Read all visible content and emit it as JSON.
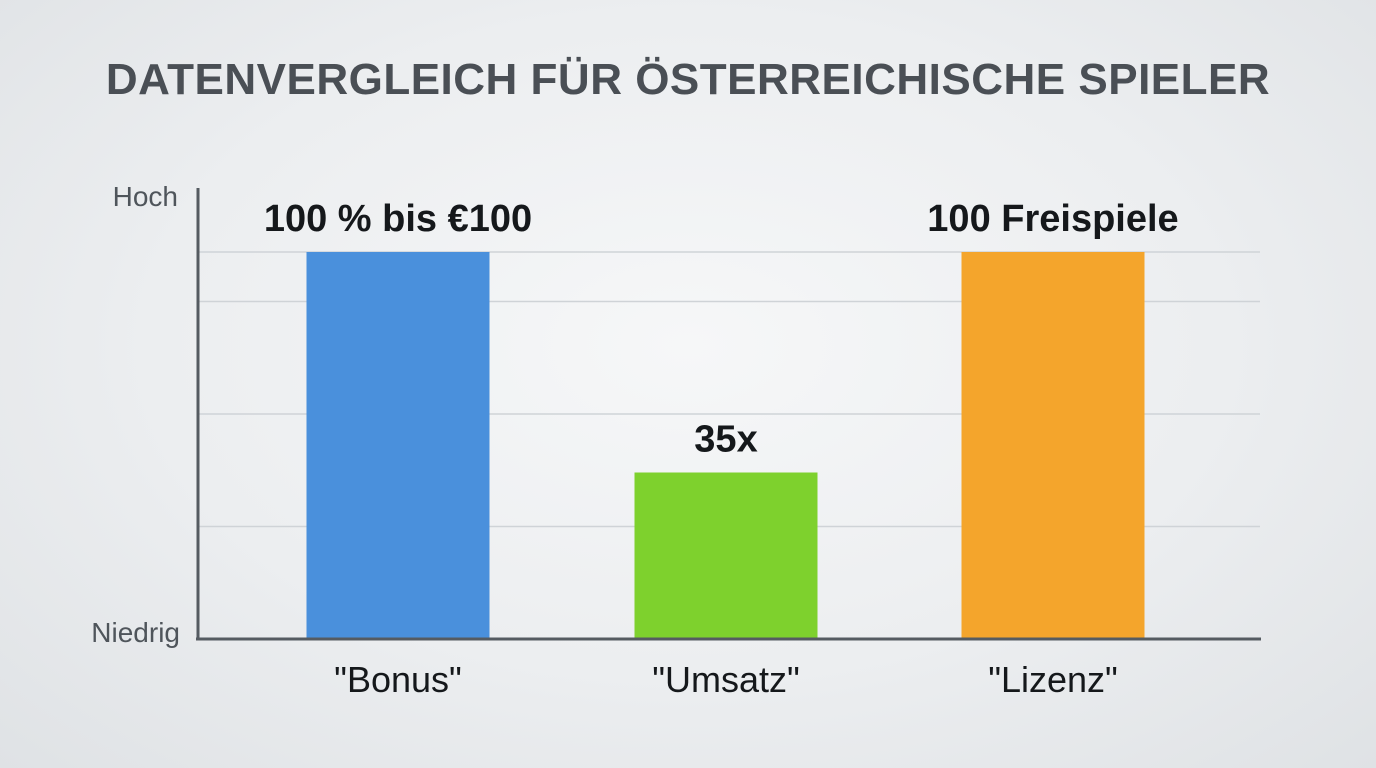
{
  "chart_data": {
    "type": "bar",
    "title": "DATENVERGLEICH FÜR ÖSTERREICHISCHE SPIELER",
    "xlabel": "",
    "ylabel": "",
    "y_axis_top_label": "Hoch",
    "y_axis_bottom_label": "Niedrig",
    "categories": [
      "\"Bonus\"",
      "\"Umsatz\"",
      "\"Lizenz\""
    ],
    "values": [
      0.86,
      0.37,
      0.86
    ],
    "value_labels": [
      "100 % bis €100",
      "35x",
      "100 Freispiele"
    ],
    "colors": [
      "#4a90dc",
      "#7ed12d",
      "#f4a52c"
    ],
    "ylim": [
      0,
      1
    ],
    "grid": true,
    "legend": "none"
  }
}
